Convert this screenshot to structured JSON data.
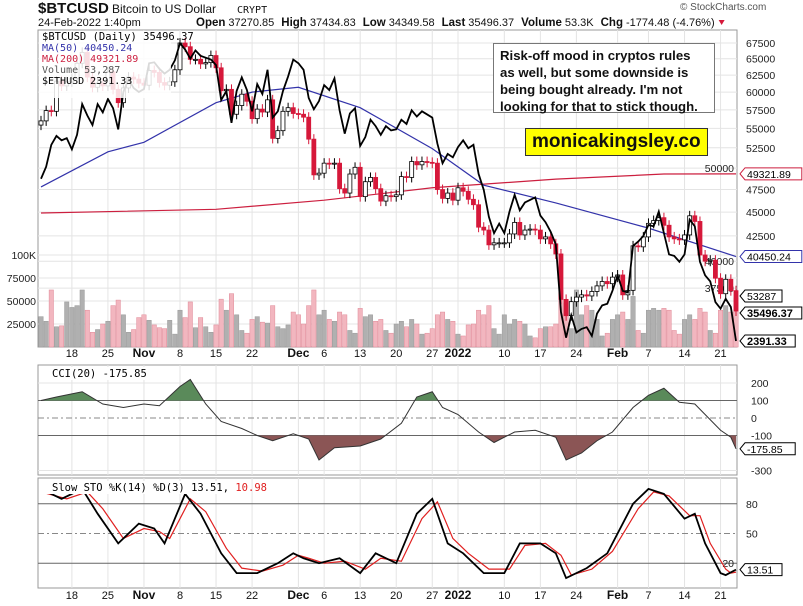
{
  "header": {
    "symbol": "$BTCUSD",
    "name": "Bitcoin to US Dollar",
    "exchange": "CRYPT",
    "datetime": "24-Feb-2022 1:40pm",
    "open_label": "Open",
    "open": "37270.85",
    "high_label": "High",
    "high": "37434.83",
    "low_label": "Low",
    "low": "34349.58",
    "last_label": "Last",
    "last": "35496.37",
    "volume_label": "Volume",
    "volume": "53.3K",
    "chg_label": "Chg",
    "chg": "-1774.48 (-4.76%)",
    "copyright": "© StockCharts.com"
  },
  "legend": {
    "price": "$BTCUSD (Daily) 35496.37",
    "ma50": "MA(50) 40450.24",
    "ma200": "MA(200) 49321.89",
    "volume": "Volume 53,287",
    "eth": "$ETHUSD 2391.33"
  },
  "annotation": "Risk-off mood in cryptos rules as well, but some downside is being bought already. I'm not looking for that to stick though.",
  "brand": "monicakingsley.co",
  "colors": {
    "up": "#ffffff",
    "down": "#d6183a",
    "ma50": "#3333aa",
    "ma200": "#cc1f3f",
    "eth": "#000000",
    "vol_up": "#b0b0b0",
    "vol_down": "#f2b6bf",
    "cci_pos": "#5a8a5a",
    "cci_neg": "#8b5555",
    "sto_k": "#000000",
    "sto_d": "#e02020"
  },
  "chart_data": [
    {
      "type": "candlestick",
      "title": "$BTCUSD (Daily)",
      "date_range": [
        "2021-10-12",
        "2022-02-24"
      ],
      "scale": "log",
      "y_ticks": [
        37500,
        40000,
        42500,
        45000,
        47500,
        50000,
        52500,
        55000,
        57500,
        60000,
        62500,
        65000,
        67500
      ],
      "x_ticks": [
        {
          "label": "18",
          "date": "2021-10-18",
          "bold": false
        },
        {
          "label": "25",
          "date": "2021-10-25",
          "bold": false
        },
        {
          "label": "Nov",
          "date": "2021-11-01",
          "bold": true
        },
        {
          "label": "8",
          "date": "2021-11-08",
          "bold": false
        },
        {
          "label": "15",
          "date": "2021-11-15",
          "bold": false
        },
        {
          "label": "22",
          "date": "2021-11-22",
          "bold": false
        },
        {
          "label": "Dec",
          "date": "2021-12-01",
          "bold": true
        },
        {
          "label": "6",
          "date": "2021-12-06",
          "bold": false
        },
        {
          "label": "13",
          "date": "2021-12-13",
          "bold": false
        },
        {
          "label": "20",
          "date": "2021-12-20",
          "bold": false
        },
        {
          "label": "27",
          "date": "2021-12-27",
          "bold": false
        },
        {
          "label": "2022",
          "date": "2022-01-01",
          "bold": true
        },
        {
          "label": "10",
          "date": "2022-01-10",
          "bold": false
        },
        {
          "label": "17",
          "date": "2022-01-17",
          "bold": false
        },
        {
          "label": "24",
          "date": "2022-01-24",
          "bold": false
        },
        {
          "label": "Feb",
          "date": "2022-02-01",
          "bold": true
        },
        {
          "label": "7",
          "date": "2022-02-07",
          "bold": false
        },
        {
          "label": "14",
          "date": "2022-02-14",
          "bold": false
        },
        {
          "label": "21",
          "date": "2022-02-21",
          "bold": false
        }
      ],
      "close": [
        56000,
        57400,
        57300,
        61600,
        60900,
        61500,
        62000,
        64300,
        66000,
        62200,
        60700,
        61300,
        60900,
        63000,
        60400,
        58500,
        60600,
        62200,
        61900,
        61300,
        61000,
        63200,
        62900,
        61400,
        61000,
        61500,
        63300,
        67500,
        66900,
        64900,
        64900,
        64200,
        64400,
        65500,
        63600,
        60200,
        60400,
        56900,
        58100,
        59700,
        58700,
        56300,
        57600,
        57200,
        58900,
        53700,
        54700,
        57300,
        57800,
        57000,
        56900,
        56500,
        53600,
        49200,
        49400,
        50600,
        50500,
        50600,
        47600,
        47100,
        49300,
        50100,
        46700,
        48400,
        48900,
        47600,
        46200,
        46800,
        46700,
        46900,
        49000,
        48900,
        50800,
        50400,
        50800,
        50700,
        50600,
        47500,
        46500,
        47100,
        46300,
        47700,
        47300,
        46400,
        45800,
        43400,
        43100,
        41600,
        41800,
        41800,
        41800,
        42700,
        43900,
        42600,
        43100,
        43200,
        43100,
        42200,
        42400,
        41700,
        40700,
        36500,
        35100,
        36300,
        36700,
        36900,
        36800,
        37200,
        37700,
        38100,
        37900,
        38500,
        38700,
        36900,
        37300,
        41500,
        41400,
        42400,
        43800,
        44100,
        44400,
        43600,
        42400,
        42200,
        42100,
        42600,
        44600,
        44000,
        40600,
        40000,
        40100,
        38400,
        37000,
        38300,
        37270.85,
        35496.37
      ],
      "ma50": [
        [
          "2021-10-12",
          47800
        ],
        [
          "2021-10-25",
          52000
        ],
        [
          "2021-11-01",
          53200
        ],
        [
          "2021-11-15",
          58500
        ],
        [
          "2021-11-22",
          60000
        ],
        [
          "2021-12-01",
          60700
        ],
        [
          "2021-12-13",
          57800
        ],
        [
          "2021-12-27",
          52400
        ],
        [
          "2022-01-06",
          48000
        ],
        [
          "2022-01-20",
          46000
        ],
        [
          "2022-02-07",
          43300
        ],
        [
          "2022-02-24",
          40450.24
        ]
      ],
      "ma200": [
        [
          "2021-10-12",
          44900
        ],
        [
          "2021-11-15",
          45300
        ],
        [
          "2021-12-06",
          46300
        ],
        [
          "2021-12-27",
          47700
        ],
        [
          "2022-01-20",
          48700
        ],
        [
          "2022-02-10",
          49300
        ],
        [
          "2022-02-24",
          49321.89
        ]
      ],
      "eth_close": [
        3500,
        3600,
        3790,
        3870,
        3830,
        3850,
        3750,
        3880,
        4170,
        4060,
        3970,
        4170,
        4090,
        4220,
        4130,
        3930,
        4290,
        4420,
        4330,
        4290,
        4320,
        4590,
        4600,
        4530,
        4480,
        4520,
        4620,
        4810,
        4740,
        4640,
        4730,
        4670,
        4650,
        4630,
        4570,
        4210,
        4300,
        3990,
        4300,
        4440,
        4310,
        4100,
        4370,
        4270,
        4520,
        4040,
        4100,
        4300,
        4450,
        4630,
        4590,
        4520,
        4230,
        4120,
        4200,
        4360,
        4310,
        4430,
        4110,
        3890,
        4080,
        4130,
        3780,
        3860,
        4020,
        3960,
        3880,
        3960,
        3920,
        3930,
        4020,
        3980,
        4110,
        4050,
        4100,
        4070,
        4040,
        3800,
        3630,
        3710,
        3680,
        3770,
        3830,
        3760,
        3790,
        3540,
        3410,
        3200,
        3080,
        3150,
        3080,
        3240,
        3370,
        3250,
        3310,
        3330,
        3350,
        3210,
        3160,
        3090,
        3000,
        2560,
        2410,
        2540,
        2440,
        2460,
        2470,
        2420,
        2550,
        2600,
        2610,
        2690,
        2790,
        2690,
        2680,
        2990,
        3020,
        3060,
        3140,
        3130,
        3240,
        3080,
        2930,
        2920,
        2880,
        2930,
        3180,
        3130,
        2880,
        2790,
        2750,
        2620,
        2580,
        2640,
        2590,
        2391.33
      ],
      "volume_ticks": [
        {
          "label": "25000",
          "v": 25000
        },
        {
          "label": "50000",
          "v": 50000
        },
        {
          "label": "75000",
          "v": 75000
        },
        {
          "label": "100K",
          "v": 100000
        }
      ],
      "volume": [
        33000,
        28000,
        62000,
        22000,
        23000,
        49000,
        43000,
        45000,
        62000,
        40000,
        16000,
        19000,
        25000,
        28000,
        45000,
        51000,
        35000,
        16000,
        19000,
        32000,
        35000,
        29000,
        24000,
        21000,
        20000,
        29000,
        14000,
        40000,
        32000,
        49000,
        21000,
        32000,
        22000,
        16000,
        24000,
        52000,
        40000,
        58000,
        35000,
        18000,
        15000,
        30000,
        33000,
        27000,
        26000,
        45000,
        22000,
        20000,
        24000,
        38000,
        35000,
        25000,
        45000,
        62000,
        35000,
        40000,
        30000,
        28000,
        38000,
        35000,
        18000,
        15000,
        42000,
        33000,
        35000,
        28000,
        30000,
        18000,
        15000,
        25000,
        28000,
        22000,
        30000,
        25000,
        14000,
        15000,
        20000,
        35000,
        38000,
        30000,
        28000,
        14000,
        12000,
        24000,
        25000,
        40000,
        35000,
        45000,
        20000,
        14000,
        35000,
        25000,
        30000,
        28000,
        25000,
        12000,
        10000,
        20000,
        22000,
        22000,
        25000,
        62000,
        48000,
        20000,
        62000,
        35000,
        45000,
        40000,
        30000,
        12000,
        15000,
        30000,
        35000,
        38000,
        30000,
        55000,
        18000,
        15000,
        40000,
        42000,
        40000,
        42000,
        40000,
        18000,
        14000,
        30000,
        35000,
        30000,
        42000,
        38000,
        18000,
        15000,
        40000,
        45000,
        38000,
        53287
      ],
      "tags": {
        "ma200": "49321.89",
        "ma50": "40450.24",
        "volume": "53287",
        "last": "35496.37",
        "eth": "2391.33"
      }
    },
    {
      "type": "line",
      "title": "CCI(20) -175.85",
      "ylim": [
        -300,
        250
      ],
      "y_ticks": [
        {
          "label": "200",
          "v": 200
        },
        {
          "label": "100",
          "v": 100
        },
        {
          "label": "0",
          "v": 0
        },
        {
          "label": "-100",
          "v": -100
        },
        {
          "label": "-300",
          "v": -300
        }
      ],
      "tag": "-175.85",
      "values": [
        [
          "2021-10-12",
          100
        ],
        [
          "2021-10-15",
          120
        ],
        [
          "2021-10-20",
          150
        ],
        [
          "2021-10-24",
          80
        ],
        [
          "2021-10-28",
          60
        ],
        [
          "2021-11-01",
          80
        ],
        [
          "2021-11-04",
          70
        ],
        [
          "2021-11-08",
          180
        ],
        [
          "2021-11-10",
          220
        ],
        [
          "2021-11-13",
          80
        ],
        [
          "2021-11-16",
          -20
        ],
        [
          "2021-11-20",
          -60
        ],
        [
          "2021-11-23",
          -100
        ],
        [
          "2021-11-26",
          -130
        ],
        [
          "2021-11-30",
          -90
        ],
        [
          "2021-12-03",
          -120
        ],
        [
          "2021-12-05",
          -240
        ],
        [
          "2021-12-08",
          -170
        ],
        [
          "2021-12-13",
          -160
        ],
        [
          "2021-12-17",
          -120
        ],
        [
          "2021-12-21",
          -30
        ],
        [
          "2021-12-24",
          120
        ],
        [
          "2021-12-27",
          150
        ],
        [
          "2021-12-29",
          60
        ],
        [
          "2022-01-01",
          20
        ],
        [
          "2022-01-05",
          -80
        ],
        [
          "2022-01-08",
          -140
        ],
        [
          "2022-01-12",
          -80
        ],
        [
          "2022-01-16",
          -70
        ],
        [
          "2022-01-20",
          -110
        ],
        [
          "2022-01-22",
          -240
        ],
        [
          "2022-01-25",
          -200
        ],
        [
          "2022-01-28",
          -130
        ],
        [
          "2022-01-31",
          -80
        ],
        [
          "2022-02-04",
          60
        ],
        [
          "2022-02-07",
          130
        ],
        [
          "2022-02-10",
          170
        ],
        [
          "2022-02-13",
          90
        ],
        [
          "2022-02-16",
          80
        ],
        [
          "2022-02-18",
          20
        ],
        [
          "2022-02-21",
          -70
        ],
        [
          "2022-02-23",
          -110
        ],
        [
          "2022-02-24",
          -175.85
        ]
      ]
    },
    {
      "type": "line",
      "title_prefix": "Slow STO %K(14) %D(3)",
      "k_last": "13.51",
      "d_last": "10.98",
      "ylim": [
        0,
        100
      ],
      "y_ticks": [
        {
          "label": "80",
          "v": 80
        },
        {
          "label": "50",
          "v": 50
        },
        {
          "label": "20",
          "v": 20
        }
      ],
      "tag": "13.51",
      "k": [
        [
          "2021-10-12",
          95
        ],
        [
          "2021-10-16",
          85
        ],
        [
          "2021-10-20",
          95
        ],
        [
          "2021-10-23",
          70
        ],
        [
          "2021-10-27",
          40
        ],
        [
          "2021-10-31",
          60
        ],
        [
          "2021-11-03",
          55
        ],
        [
          "2021-11-05",
          40
        ],
        [
          "2021-11-09",
          90
        ],
        [
          "2021-11-12",
          70
        ],
        [
          "2021-11-16",
          30
        ],
        [
          "2021-11-19",
          10
        ],
        [
          "2021-11-23",
          10
        ],
        [
          "2021-11-27",
          20
        ],
        [
          "2021-11-30",
          30
        ],
        [
          "2021-12-02",
          25
        ],
        [
          "2021-12-05",
          20
        ],
        [
          "2021-12-09",
          25
        ],
        [
          "2021-12-13",
          10
        ],
        [
          "2021-12-16",
          30
        ],
        [
          "2021-12-20",
          20
        ],
        [
          "2021-12-24",
          70
        ],
        [
          "2021-12-27",
          85
        ],
        [
          "2021-12-30",
          40
        ],
        [
          "2022-01-02",
          30
        ],
        [
          "2022-01-06",
          10
        ],
        [
          "2022-01-10",
          10
        ],
        [
          "2022-01-13",
          40
        ],
        [
          "2022-01-17",
          40
        ],
        [
          "2022-01-20",
          30
        ],
        [
          "2022-01-22",
          5
        ],
        [
          "2022-01-26",
          15
        ],
        [
          "2022-01-30",
          30
        ],
        [
          "2022-02-04",
          80
        ],
        [
          "2022-02-07",
          95
        ],
        [
          "2022-02-10",
          90
        ],
        [
          "2022-02-14",
          65
        ],
        [
          "2022-02-16",
          70
        ],
        [
          "2022-02-18",
          40
        ],
        [
          "2022-02-21",
          10
        ],
        [
          "2022-02-22",
          8
        ],
        [
          "2022-02-24",
          13.51
        ]
      ],
      "d": [
        [
          "2021-10-12",
          92
        ],
        [
          "2021-10-17",
          85
        ],
        [
          "2021-10-21",
          92
        ],
        [
          "2021-10-24",
          75
        ],
        [
          "2021-10-28",
          45
        ],
        [
          "2021-11-01",
          55
        ],
        [
          "2021-11-04",
          52
        ],
        [
          "2021-11-06",
          45
        ],
        [
          "2021-11-10",
          85
        ],
        [
          "2021-11-13",
          72
        ],
        [
          "2021-11-17",
          35
        ],
        [
          "2021-11-20",
          15
        ],
        [
          "2021-11-24",
          12
        ],
        [
          "2021-11-28",
          18
        ],
        [
          "2021-12-01",
          28
        ],
        [
          "2021-12-03",
          25
        ],
        [
          "2021-12-06",
          20
        ],
        [
          "2021-12-10",
          22
        ],
        [
          "2021-12-14",
          14
        ],
        [
          "2021-12-17",
          25
        ],
        [
          "2021-12-21",
          22
        ],
        [
          "2021-12-25",
          65
        ],
        [
          "2021-12-28",
          82
        ],
        [
          "2021-12-31",
          45
        ],
        [
          "2022-01-03",
          30
        ],
        [
          "2022-01-07",
          14
        ],
        [
          "2022-01-11",
          14
        ],
        [
          "2022-01-14",
          38
        ],
        [
          "2022-01-18",
          40
        ],
        [
          "2022-01-21",
          28
        ],
        [
          "2022-01-23",
          8
        ],
        [
          "2022-01-27",
          14
        ],
        [
          "2022-01-31",
          32
        ],
        [
          "2022-02-05",
          75
        ],
        [
          "2022-02-08",
          92
        ],
        [
          "2022-02-11",
          88
        ],
        [
          "2022-02-15",
          68
        ],
        [
          "2022-02-17",
          68
        ],
        [
          "2022-02-19",
          40
        ],
        [
          "2022-02-22",
          14
        ],
        [
          "2022-02-23",
          10
        ],
        [
          "2022-02-24",
          10.98
        ]
      ]
    }
  ]
}
